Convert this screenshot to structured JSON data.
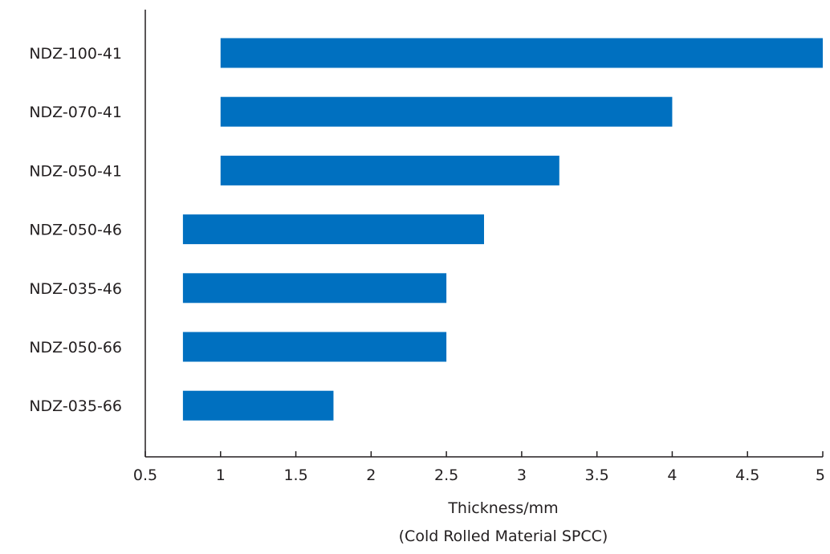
{
  "chart_data": {
    "type": "bar",
    "orientation": "horizontal",
    "categories": [
      "NDZ-100-41",
      "NDZ-070-41",
      "NDZ-050-41",
      "NDZ-050-46",
      "NDZ-035-46",
      "NDZ-050-66",
      "NDZ-035-66"
    ],
    "ranges": [
      [
        1.0,
        5.0
      ],
      [
        1.0,
        4.0
      ],
      [
        1.0,
        3.25
      ],
      [
        0.75,
        2.75
      ],
      [
        0.75,
        2.5
      ],
      [
        0.75,
        2.5
      ],
      [
        0.75,
        1.75
      ]
    ],
    "xlabel": "Thickness/mm",
    "xlabel_note": "(Cold Rolled Material SPCC)",
    "title": "",
    "xlim": [
      0.5,
      5
    ],
    "xticks": [
      0.5,
      1,
      1.5,
      2,
      2.5,
      3,
      3.5,
      4,
      4.5,
      5
    ],
    "xtick_labels": [
      "0.5",
      "1",
      "1.5",
      "2",
      "2.5",
      "3",
      "3.5",
      "4",
      "4.5",
      "5"
    ],
    "grid": false,
    "legend": "none",
    "bar_color": "#0070c0",
    "axis_color": "#231f20"
  }
}
